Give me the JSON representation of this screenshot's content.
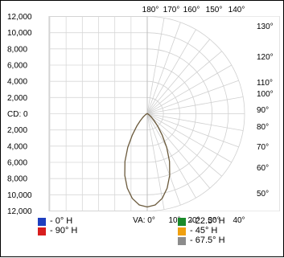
{
  "chart_data": {
    "type": "polar-candela",
    "left_axis_ticks": [
      "12,000",
      "10,000",
      "8,000",
      "6,000",
      "4,000",
      "2,000",
      "CD: 0",
      "2,000",
      "4,000",
      "6,000",
      "8,000",
      "10,000",
      "12,000"
    ],
    "top_angle_labels": [
      "180°",
      "170°",
      "160°",
      "150°",
      "140°"
    ],
    "right_angle_labels": [
      "130°",
      "120°",
      "110°",
      "100°",
      "90°",
      "80°",
      "70°",
      "60°",
      "50°"
    ],
    "bottom_angle_labels": [
      "VA: 0°",
      "10°",
      "20°",
      "30°",
      "40°"
    ],
    "radial_max": 12000,
    "series": [
      {
        "name": "0° H",
        "color": "#1f3fbf",
        "points": [
          [
            0,
            11500
          ],
          [
            5,
            11300
          ],
          [
            10,
            10600
          ],
          [
            15,
            9500
          ],
          [
            20,
            8100
          ],
          [
            25,
            6500
          ],
          [
            30,
            4800
          ],
          [
            35,
            3200
          ],
          [
            40,
            2000
          ],
          [
            45,
            1200
          ],
          [
            50,
            700
          ],
          [
            55,
            400
          ],
          [
            60,
            250
          ],
          [
            70,
            100
          ],
          [
            80,
            50
          ],
          [
            90,
            40
          ],
          [
            100,
            40
          ],
          [
            110,
            30
          ],
          [
            120,
            25
          ],
          [
            130,
            20
          ],
          [
            140,
            15
          ],
          [
            150,
            10
          ],
          [
            160,
            0
          ],
          [
            170,
            0
          ],
          [
            180,
            0
          ]
        ]
      },
      {
        "name": "90° H",
        "color": "#d81e1e",
        "points": [
          [
            0,
            11500
          ],
          [
            5,
            11300
          ],
          [
            10,
            10600
          ],
          [
            15,
            9500
          ],
          [
            20,
            8100
          ],
          [
            25,
            6500
          ],
          [
            30,
            4800
          ],
          [
            35,
            3200
          ],
          [
            40,
            2000
          ],
          [
            45,
            1200
          ],
          [
            50,
            700
          ],
          [
            55,
            400
          ],
          [
            60,
            250
          ],
          [
            70,
            100
          ],
          [
            80,
            50
          ],
          [
            90,
            40
          ],
          [
            100,
            40
          ],
          [
            110,
            30
          ],
          [
            120,
            25
          ],
          [
            130,
            20
          ],
          [
            140,
            15
          ],
          [
            150,
            10
          ],
          [
            160,
            0
          ],
          [
            170,
            0
          ],
          [
            180,
            0
          ]
        ]
      },
      {
        "name": "22.5° H",
        "color": "#1a8a2a",
        "points": [
          [
            0,
            11500
          ],
          [
            5,
            11300
          ],
          [
            10,
            10600
          ],
          [
            15,
            9500
          ],
          [
            20,
            8100
          ],
          [
            25,
            6500
          ],
          [
            30,
            4800
          ],
          [
            35,
            3200
          ],
          [
            40,
            2000
          ],
          [
            45,
            1200
          ],
          [
            50,
            700
          ],
          [
            55,
            400
          ],
          [
            60,
            250
          ],
          [
            70,
            100
          ],
          [
            80,
            50
          ],
          [
            90,
            40
          ],
          [
            100,
            40
          ],
          [
            110,
            30
          ],
          [
            120,
            25
          ],
          [
            130,
            20
          ],
          [
            140,
            15
          ],
          [
            150,
            10
          ],
          [
            160,
            0
          ],
          [
            170,
            0
          ],
          [
            180,
            0
          ]
        ]
      },
      {
        "name": "45° H",
        "color": "#f0a010",
        "points": [
          [
            0,
            11500
          ],
          [
            5,
            11300
          ],
          [
            10,
            10600
          ],
          [
            15,
            9500
          ],
          [
            20,
            8100
          ],
          [
            25,
            6500
          ],
          [
            30,
            4800
          ],
          [
            35,
            3200
          ],
          [
            40,
            2000
          ],
          [
            45,
            1200
          ],
          [
            50,
            700
          ],
          [
            55,
            400
          ],
          [
            60,
            250
          ],
          [
            70,
            100
          ],
          [
            80,
            50
          ],
          [
            90,
            40
          ],
          [
            100,
            40
          ],
          [
            110,
            30
          ],
          [
            120,
            25
          ],
          [
            130,
            20
          ],
          [
            140,
            15
          ],
          [
            150,
            10
          ],
          [
            160,
            0
          ],
          [
            170,
            0
          ],
          [
            180,
            0
          ]
        ]
      },
      {
        "name": "67.5° H",
        "color": "#8c8c8c",
        "points": [
          [
            0,
            11500
          ],
          [
            5,
            11300
          ],
          [
            10,
            10600
          ],
          [
            15,
            9500
          ],
          [
            20,
            8100
          ],
          [
            25,
            6500
          ],
          [
            30,
            4800
          ],
          [
            35,
            3200
          ],
          [
            40,
            2000
          ],
          [
            45,
            1200
          ],
          [
            50,
            700
          ],
          [
            55,
            400
          ],
          [
            60,
            250
          ],
          [
            70,
            100
          ],
          [
            80,
            50
          ],
          [
            90,
            40
          ],
          [
            100,
            40
          ],
          [
            110,
            30
          ],
          [
            120,
            25
          ],
          [
            130,
            20
          ],
          [
            140,
            15
          ],
          [
            150,
            10
          ],
          [
            160,
            0
          ],
          [
            170,
            0
          ],
          [
            180,
            0
          ]
        ]
      }
    ],
    "legend_labels": [
      "- 0° H",
      "- 90° H",
      "- 22.5° H",
      "- 45° H",
      "- 67.5° H"
    ],
    "grid": true
  }
}
